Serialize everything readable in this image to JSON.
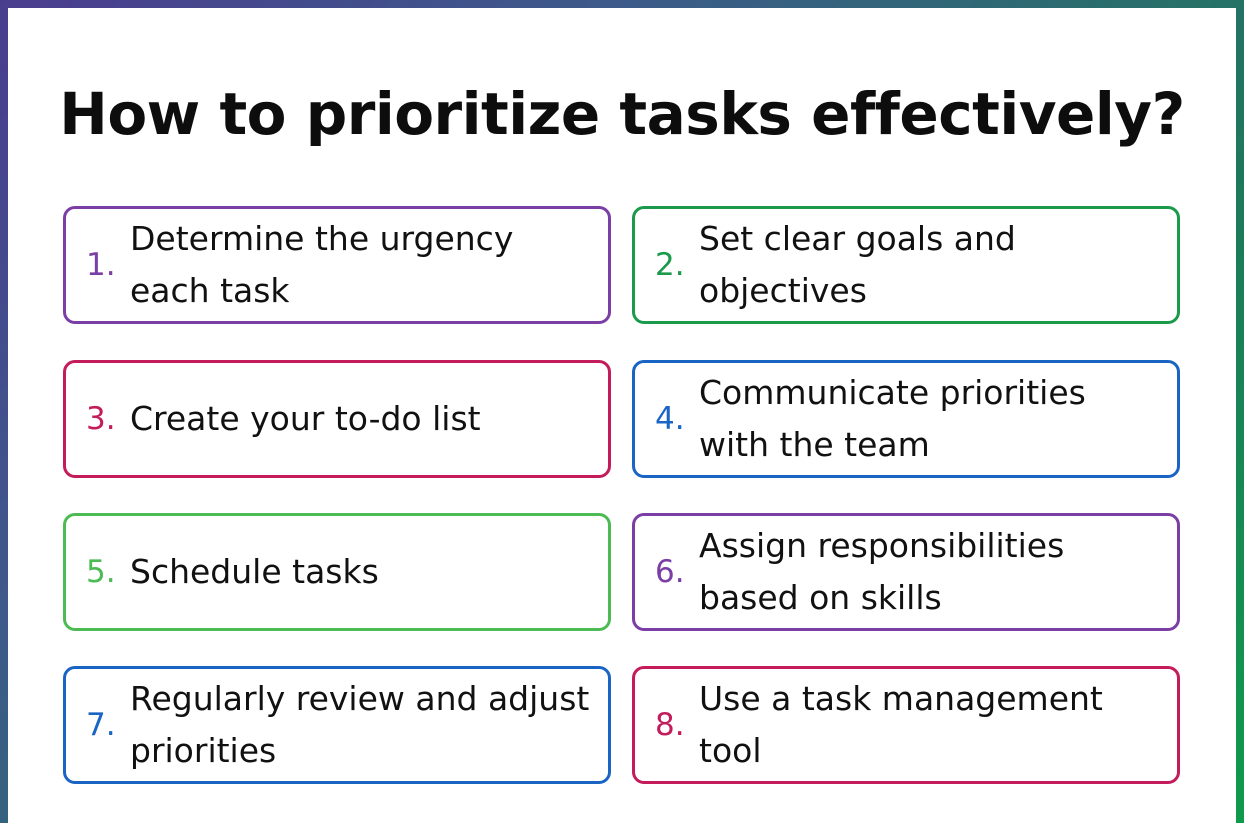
{
  "title": "How to prioritize tasks effectively?",
  "items": [
    {
      "number": "1.",
      "text": "Determine the urgency each task",
      "color": "#7a3ea5"
    },
    {
      "number": "2.",
      "text": "Set clear goals and objectives",
      "color": "#1a9a4a"
    },
    {
      "number": "3.",
      "text": "Create your to-do list",
      "color": "#c41c5b"
    },
    {
      "number": "4.",
      "text": "Communicate priorities with the team",
      "color": "#1a64c4"
    },
    {
      "number": "5.",
      "text": "Schedule tasks",
      "color": "#4cbb54"
    },
    {
      "number": "6.",
      "text": "Assign responsibilities based on skills",
      "color": "#7a3ea5"
    },
    {
      "number": "7.",
      "text": "Regularly review and adjust priorities",
      "color": "#1a64c4"
    },
    {
      "number": "8.",
      "text": "Use a task management tool",
      "color": "#c41c5b"
    }
  ]
}
